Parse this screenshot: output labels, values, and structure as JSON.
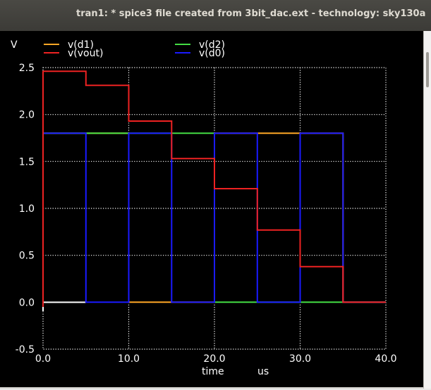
{
  "window": {
    "title": "tran1: * spice3 file created from 3bit_dac.ext - technology: sky130a"
  },
  "colors": {
    "background": "#000000",
    "grid": "#ffffff",
    "text": "#ffffff"
  },
  "chart_data": {
    "type": "line",
    "ylabel": "V",
    "xlabel": "time",
    "xunit": "us",
    "xlim": [
      0,
      40
    ],
    "ylim": [
      -0.5,
      2.5
    ],
    "xticks": [
      0,
      10,
      20,
      30,
      40
    ],
    "xtick_labels": [
      "0.0",
      "10.0",
      "20.0",
      "30.0",
      "40.0"
    ],
    "yticks": [
      -0.5,
      0,
      0.5,
      1.0,
      1.5,
      2.0,
      2.5
    ],
    "ytick_labels": [
      "-0.5",
      "0.0",
      "0.5",
      "1.0",
      "1.5",
      "2.0",
      "2.5"
    ],
    "grid": true,
    "legend_placement": "top",
    "series": [
      {
        "name": "v(d1)",
        "color": "#ffa726",
        "x": [
          0,
          10,
          10,
          15,
          15,
          20,
          20,
          25,
          25,
          30,
          30,
          35,
          35,
          40
        ],
        "y": [
          1.8,
          1.8,
          0.0,
          0.0,
          0.0,
          0.0,
          1.8,
          1.8,
          1.8,
          1.8,
          1.8,
          1.8,
          0.0,
          0.0
        ]
      },
      {
        "name": "v(d2)",
        "color": "#44dd44",
        "x": [
          0,
          20,
          20,
          40
        ],
        "y": [
          1.8,
          1.8,
          0.0,
          0.0
        ]
      },
      {
        "name": "v(d0)",
        "color": "#1a1aff",
        "x": [
          0,
          5,
          5,
          10,
          10,
          15,
          15,
          20,
          20,
          25,
          25,
          30,
          30,
          35,
          35,
          40
        ],
        "y": [
          1.8,
          1.8,
          0.0,
          0.0,
          1.8,
          1.8,
          0.0,
          0.0,
          1.8,
          1.8,
          0.0,
          0.0,
          1.8,
          1.8,
          0.0,
          0.0
        ]
      },
      {
        "name": "v(vout)",
        "color": "#ee2222",
        "x": [
          0,
          0,
          5,
          5,
          10,
          10,
          15,
          15,
          20,
          20,
          25,
          25,
          30,
          30,
          35,
          35,
          40
        ],
        "y": [
          -0.05,
          2.46,
          2.46,
          2.31,
          2.31,
          1.93,
          1.93,
          1.53,
          1.53,
          1.21,
          1.21,
          0.77,
          0.77,
          0.38,
          0.38,
          0.0,
          0.0
        ]
      }
    ]
  }
}
